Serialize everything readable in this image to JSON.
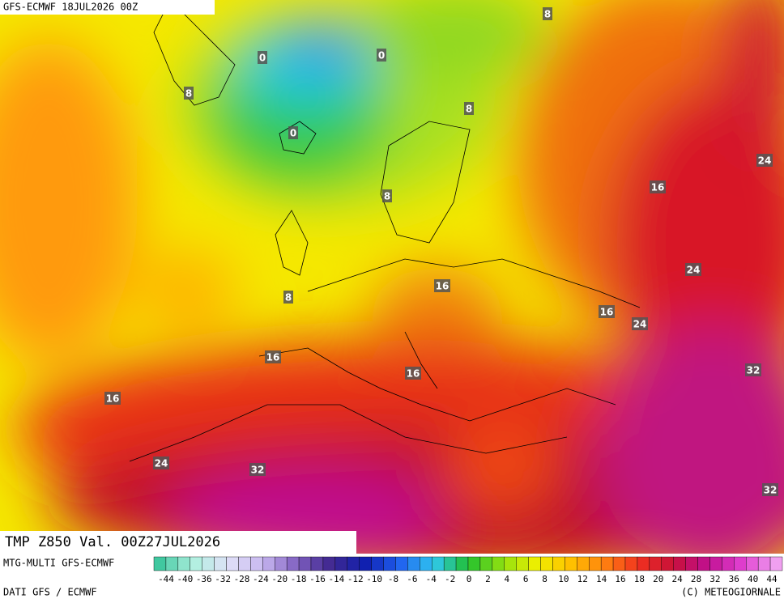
{
  "header": {
    "title": "GFS-ECMWF 18JUL2026 00Z"
  },
  "map": {
    "contour_labels": [
      "8",
      "0",
      "0",
      "8",
      "8",
      "0",
      "24",
      "16",
      "8",
      "24",
      "16",
      "8",
      "16",
      "24",
      "16",
      "32",
      "16",
      "16",
      "24",
      "32",
      "32"
    ]
  },
  "caption": "TMP Z850 Val. 00Z27JUL2026",
  "footer": {
    "model": "MTG-MULTI GFS-ECMWF",
    "source": "DATI GFS / ECMWF",
    "credit": "(C) METEOGIORNALE"
  },
  "legend": {
    "labels": [
      -44,
      -40,
      -36,
      -32,
      -28,
      -24,
      -20,
      -18,
      -16,
      -14,
      -12,
      -10,
      -8,
      -6,
      -4,
      -2,
      0,
      2,
      4,
      6,
      8,
      10,
      12,
      14,
      16,
      18,
      20,
      24,
      28,
      32,
      36,
      40,
      44
    ]
  }
}
